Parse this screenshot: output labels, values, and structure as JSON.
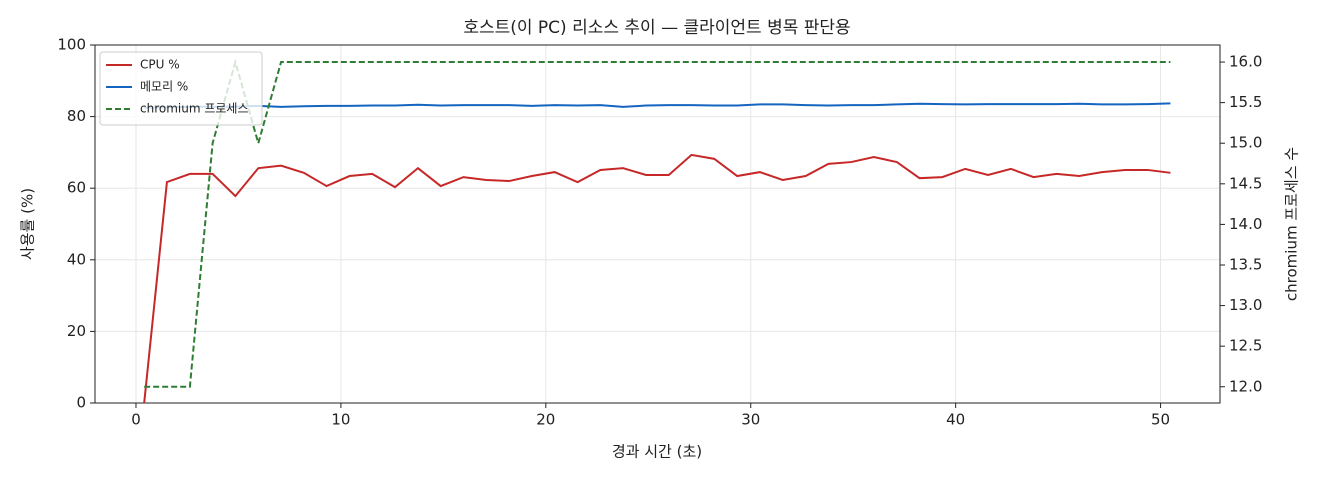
{
  "chart_data": {
    "type": "line",
    "title": "호스트(이 PC) 리소스 추이 — 클라이언트 병목 판단용",
    "x_label": "경과 시간 (초)",
    "y_label": "사용률 (%)",
    "y2_label": "chromium 프로세스 수",
    "x": [
      0.4,
      1.51,
      2.63,
      3.74,
      4.85,
      5.97,
      7.08,
      8.19,
      9.3,
      10.42,
      11.53,
      12.64,
      13.76,
      14.87,
      15.98,
      17.1,
      18.21,
      19.32,
      20.43,
      21.55,
      22.66,
      23.77,
      24.89,
      26.0,
      27.11,
      28.22,
      29.34,
      30.45,
      31.56,
      32.68,
      33.79,
      34.9,
      36.01,
      37.13,
      38.24,
      39.35,
      40.47,
      41.58,
      42.69,
      43.8,
      44.92,
      46.03,
      47.14,
      48.26,
      49.37,
      50.48
    ],
    "series": [
      {
        "name": "CPU %",
        "color": "#c62828",
        "linestyle": "solid",
        "axis": "y",
        "values": [
          0,
          61.7,
          64,
          64,
          57.8,
          65.6,
          66.3,
          64.3,
          60.6,
          63.4,
          64,
          60.3,
          65.6,
          60.6,
          63.1,
          62.3,
          62,
          63.4,
          64.5,
          61.7,
          65.1,
          65.6,
          63.7,
          63.7,
          69.3,
          68.2,
          63.4,
          64.5,
          62.3,
          63.4,
          66.8,
          67.3,
          68.7,
          67.3,
          62.8,
          63.1,
          65.4,
          63.7,
          65.4,
          63.1,
          64,
          63.4,
          64.5,
          65.1,
          65.1,
          64.3
        ]
      },
      {
        "name": "메모리 %",
        "color": "#1565c0",
        "linestyle": "solid",
        "axis": "y",
        "values": [
          82.5,
          82.6,
          82.7,
          82.8,
          82.8,
          83.0,
          82.7,
          82.9,
          83.0,
          83.0,
          83.1,
          83.1,
          83.3,
          83.1,
          83.2,
          83.2,
          83.2,
          83.0,
          83.2,
          83.1,
          83.2,
          82.7,
          83.1,
          83.2,
          83.2,
          83.1,
          83.1,
          83.4,
          83.4,
          83.2,
          83.1,
          83.2,
          83.2,
          83.4,
          83.6,
          83.5,
          83.4,
          83.5,
          83.5,
          83.5,
          83.5,
          83.6,
          83.4,
          83.4,
          83.5,
          83.7
        ]
      },
      {
        "name": "chromium 프로세스",
        "color": "#2e7d32",
        "linestyle": "dashed",
        "axis": "y2",
        "values": [
          12,
          12,
          12,
          15,
          16,
          15,
          16,
          16,
          16,
          16,
          16,
          16,
          16,
          16,
          16,
          16,
          16,
          16,
          16,
          16,
          16,
          16,
          16,
          16,
          16,
          16,
          16,
          16,
          16,
          16,
          16,
          16,
          16,
          16,
          16,
          16,
          16,
          16,
          16,
          16,
          16,
          16,
          16,
          16,
          16,
          16
        ]
      }
    ],
    "xlim": [
      -2.0,
      52.9
    ],
    "xticks": [
      0,
      10,
      20,
      30,
      40,
      50
    ],
    "ylim": [
      0,
      100
    ],
    "yticks": [
      0,
      20,
      40,
      60,
      80,
      100
    ],
    "y2lim": [
      11.8,
      16.21
    ],
    "y2ticks": [
      {
        "value": 12,
        "label": "12.0"
      },
      12.5,
      {
        "value": 13,
        "label": "13.0"
      },
      13.5,
      {
        "value": 14,
        "label": "14.0"
      },
      14.5,
      {
        "value": 15,
        "label": "15.0"
      },
      15.5,
      {
        "value": 16,
        "label": "16.0"
      }
    ],
    "grid": true,
    "legend": "upper-left"
  }
}
